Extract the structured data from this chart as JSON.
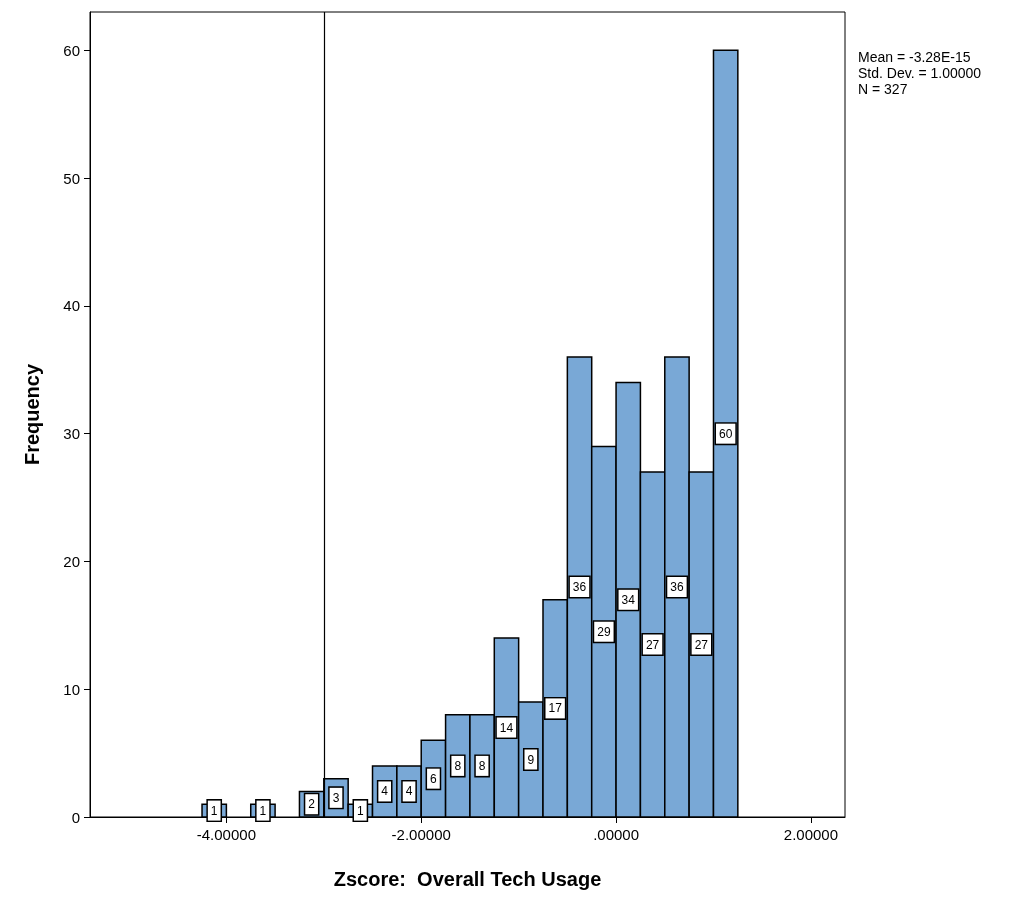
{
  "chart_data": {
    "type": "histogram",
    "xlabel": "Zscore:  Overall Tech Usage",
    "ylabel": "Frequency",
    "bins": [
      -4.25,
      -4.0,
      -3.75,
      -3.5,
      -3.25,
      -3.0,
      -2.75,
      -2.5,
      -2.25,
      -2.0,
      -1.75,
      -1.5,
      -1.25,
      -1.0,
      -0.75,
      -0.5,
      -0.25,
      0,
      0.25,
      0.5,
      0.75,
      1.0,
      1.25
    ],
    "values": [
      1,
      0,
      1,
      0,
      2,
      3,
      1,
      4,
      4,
      6,
      8,
      8,
      14,
      9,
      17,
      36,
      29,
      34,
      27,
      36,
      27,
      60
    ],
    "value_labels": [
      "1",
      null,
      "1",
      null,
      "2",
      "3",
      "1",
      "4",
      "4",
      "6",
      "8",
      "8",
      "14",
      "9",
      "17",
      "36",
      "29",
      "34",
      "27",
      "36",
      "27",
      "60"
    ],
    "color": "#79a8d6",
    "xlim": [
      -5.4,
      2.35
    ],
    "xticks": [
      {
        "value": -4,
        "label": "-4.00000"
      },
      {
        "value": -2,
        "label": "-2.00000"
      },
      {
        "value": 0,
        "label": ".00000"
      },
      {
        "value": 2,
        "label": "2.00000"
      }
    ],
    "ylim": [
      0,
      63
    ],
    "yticks": [
      0,
      10,
      20,
      30,
      40,
      50,
      60
    ],
    "grid": false,
    "ref_lines": [
      {
        "axis": "x",
        "value": -3,
        "color": "#000000"
      }
    ],
    "annotations": [
      "Mean = -3.28E-15",
      "Std. Dev. = 1.00000",
      "N = 327"
    ]
  }
}
